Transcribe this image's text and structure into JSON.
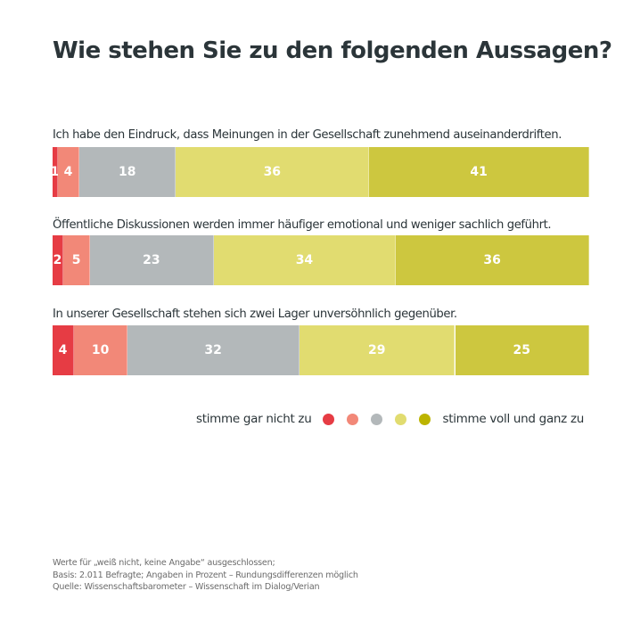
{
  "chart_data": {
    "type": "bar",
    "orientation": "horizontal-stacked-100",
    "title": "Wie stehen Sie zu den folgenden Aussagen?",
    "categories": [
      "Ich habe den Eindruck, dass Meinungen in der Gesellschaft zunehmend auseinanderdriften.",
      "Öffentliche Diskussionen werden immer häufiger emotional und weniger sachlich geführt.",
      "In unserer Gesellschaft stehen sich zwei Lager unversöhnlich gegenüber."
    ],
    "series_colors": [
      "#e63c44",
      "#f28878",
      "#b3b8ba",
      "#e1dc70",
      "#cdc73f"
    ],
    "legend_colors": [
      "#e63c44",
      "#f28878",
      "#b3b8ba",
      "#e1dc70",
      "#bcb400"
    ],
    "rows": [
      [
        1,
        4,
        18,
        36,
        41
      ],
      [
        2,
        5,
        23,
        34,
        36
      ],
      [
        4,
        10,
        32,
        29,
        25
      ]
    ],
    "legend": {
      "left": "stimme gar nicht zu",
      "right": "stimme voll und ganz zu",
      "placement": "bottom-right"
    },
    "xlim": [
      0,
      100
    ]
  },
  "notes": [
    "Werte für „weiß nicht, keine Angabe“ ausgeschlossen;",
    "Basis: 2.011 Befragte; Angaben in Prozent – Rundungsdifferenzen möglich",
    "Quelle: Wissenschaftsbarometer – Wissenschaft im Dialog/Verian"
  ]
}
